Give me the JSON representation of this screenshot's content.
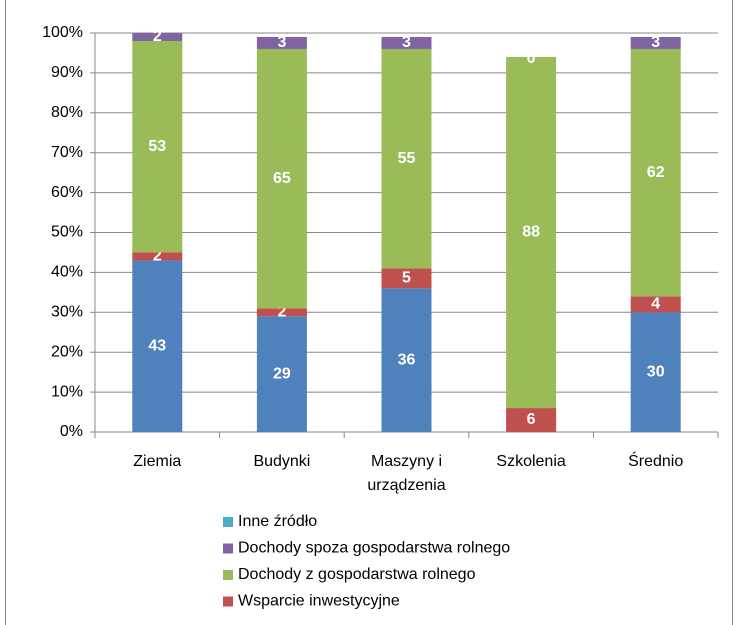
{
  "chart_data": {
    "type": "stacked_bar",
    "categories": [
      "Ziemia",
      "Budynki",
      [
        "Maszyny i",
        "urządzenia"
      ],
      "Szkolenia",
      "Średnio"
    ],
    "series": [
      {
        "color": "#4f81bd",
        "values": [
          43,
          29,
          36,
          0,
          30
        ]
      },
      {
        "name": "Wsparcie inwestycyjne",
        "color": "#c0504d",
        "values": [
          2,
          2,
          5,
          6,
          4
        ]
      },
      {
        "name": "Dochody z gospodarstwa rolnego",
        "color": "#9bbb59",
        "values": [
          53,
          65,
          55,
          88,
          62
        ]
      },
      {
        "name": "Dochody spoza gospodarstwa rolnego",
        "color": "#8064a2",
        "values": [
          2,
          3,
          3,
          null,
          3
        ]
      },
      {
        "name": "Inne źródło",
        "color": "#4bacc6",
        "values": [
          null,
          null,
          null,
          0,
          null
        ]
      }
    ],
    "ylim": [
      0,
      100
    ],
    "yticks": [
      {
        "value": 0,
        "label": "0%"
      },
      {
        "value": 10,
        "label": "10%"
      },
      {
        "value": 20,
        "label": "20%"
      },
      {
        "value": 30,
        "label": "30%"
      },
      {
        "value": 40,
        "label": "40%"
      },
      {
        "value": 50,
        "label": "50%"
      },
      {
        "value": 60,
        "label": "60%"
      },
      {
        "value": 70,
        "label": "70%"
      },
      {
        "value": 80,
        "label": "80%"
      },
      {
        "value": 90,
        "label": "90%"
      },
      {
        "value": 100,
        "label": "100%"
      }
    ],
    "grid": true
  }
}
